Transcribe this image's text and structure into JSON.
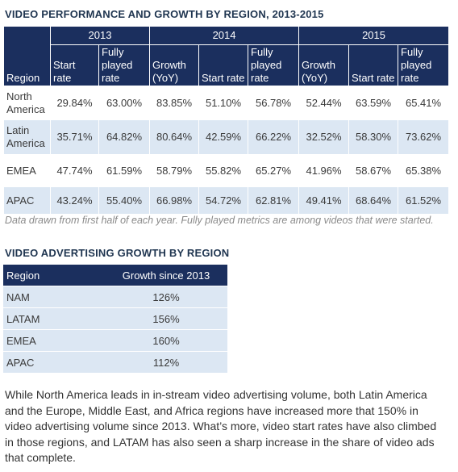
{
  "table1": {
    "title": "VIDEO PERFORMANCE AND GROWTH BY REGION, 2013-2015",
    "year_headers": [
      "2013",
      "2014",
      "2015"
    ],
    "column_headers": [
      "Region",
      "Start rate",
      "Fully played rate",
      "Growth (YoY)",
      "Start rate",
      "Fully played rate",
      "Growth (YoY)",
      "Start rate",
      "Fully played rate"
    ],
    "rows": [
      [
        "North America",
        "29.84%",
        "63.00%",
        "83.85%",
        "51.10%",
        "56.78%",
        "52.44%",
        "63.59%",
        "65.41%"
      ],
      [
        "Latin America",
        "35.71%",
        "64.82%",
        "80.64%",
        "42.59%",
        "66.22%",
        "32.52%",
        "58.30%",
        "73.62%"
      ],
      [
        "EMEA",
        "47.74%",
        "61.59%",
        "58.79%",
        "55.82%",
        "65.27%",
        "41.96%",
        "58.67%",
        "65.38%"
      ],
      [
        "APAC",
        "43.24%",
        "55.40%",
        "66.98%",
        "54.72%",
        "62.81%",
        "49.41%",
        "68.64%",
        "61.52%"
      ]
    ],
    "note": "Data drawn from first half of each year. Fully played metrics are among videos that were started."
  },
  "table2": {
    "title": "VIDEO ADVERTISING GROWTH BY REGION",
    "column_headers": [
      "Region",
      "Growth since 2013"
    ],
    "rows": [
      [
        "NAM",
        "126%"
      ],
      [
        "LATAM",
        "156%"
      ],
      [
        "EMEA",
        "160%"
      ],
      [
        "APAC",
        "112%"
      ]
    ]
  },
  "paragraph": "While North America leads in in-stream video advertising volume, both Latin America and the Europe, Middle East, and Africa regions have increased more that 150% in video advertising volume since 2013. What’s more, video start rates have also climbed in those regions, and LATAM has also seen a sharp increase in the share of video ads that complete."
}
